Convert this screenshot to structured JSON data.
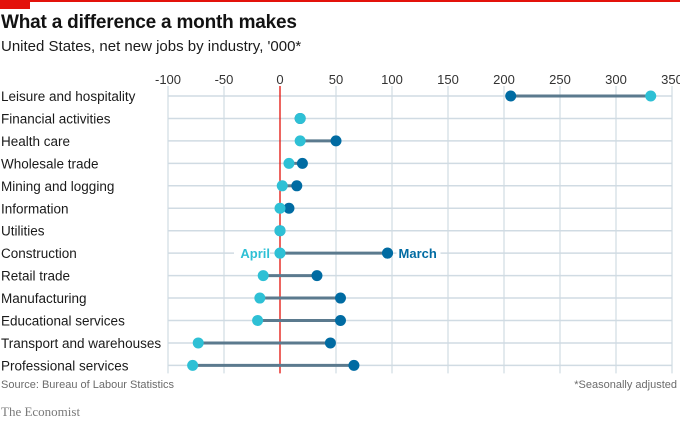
{
  "header": {
    "title": "What a difference a month makes",
    "subtitle": "United States, net new jobs by industry, '000*"
  },
  "footer": {
    "source": "Source: Bureau of Labour Statistics",
    "note": "*Seasonally adjusted",
    "brand": "The Economist"
  },
  "colors": {
    "brand_red": "#e3120b",
    "march": "#006ba2",
    "april": "#2ec0d5",
    "connector": "#5b7a8e",
    "zero_line": "#e3120b",
    "grid": "#d0dbe3"
  },
  "chart_data": {
    "type": "dumbbell",
    "title": "What a difference a month makes",
    "subtitle": "United States, net new jobs by industry, '000*",
    "xlabel": "",
    "ylabel": "",
    "xlim": [
      -100,
      350
    ],
    "xticks": [
      -100,
      -50,
      0,
      50,
      100,
      150,
      200,
      250,
      300,
      350
    ],
    "grid": true,
    "categories": [
      "Leisure and hospitality",
      "Financial activities",
      "Health care",
      "Wholesale trade",
      "Mining and logging",
      "Information",
      "Utilities",
      "Construction",
      "Retail trade",
      "Manufacturing",
      "Educational services",
      "Transport and warehouses",
      "Professional services"
    ],
    "series": [
      {
        "name": "March",
        "values": [
          206,
          18,
          50,
          20,
          15,
          8,
          0,
          96,
          33,
          54,
          54,
          45,
          66
        ]
      },
      {
        "name": "April",
        "values": [
          331,
          18,
          18,
          8,
          2,
          0,
          0,
          0,
          -15,
          -18,
          -20,
          -73,
          -78
        ]
      }
    ],
    "annotations": [
      {
        "text": "April",
        "category": "Construction",
        "series": "April",
        "position": "left"
      },
      {
        "text": "March",
        "category": "Construction",
        "series": "March",
        "position": "right"
      }
    ],
    "footnote": "*Seasonally adjusted",
    "source": "Source: Bureau of Labour Statistics"
  }
}
